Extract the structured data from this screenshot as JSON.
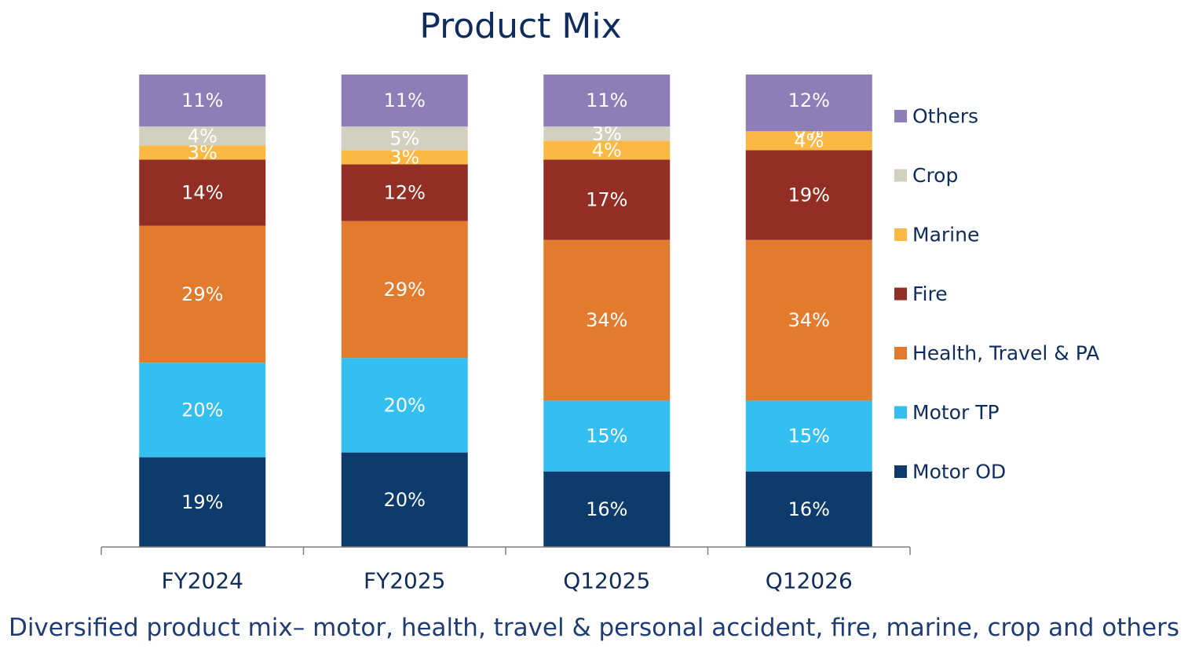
{
  "chart_data": {
    "type": "bar",
    "stacked": true,
    "title": "Product Mix",
    "caption": "Diversified product mix– motor, health, travel & personal accident, fire, marine, crop and others",
    "categories": [
      "FY2024",
      "FY2025",
      "Q12025",
      "Q12026"
    ],
    "legend_position": "right",
    "grid": false,
    "series": [
      {
        "name": "Motor OD",
        "color": "#0d3b6b",
        "label_color": "#ffffff",
        "values": [
          19,
          20,
          16,
          16
        ],
        "labels": [
          "19%",
          "20%",
          "16%",
          "16%"
        ]
      },
      {
        "name": "Motor TP",
        "color": "#33bff0",
        "label_color": "#ffffff",
        "values": [
          20,
          20,
          15,
          15
        ],
        "labels": [
          "20%",
          "20%",
          "15%",
          "15%"
        ]
      },
      {
        "name": "Health, Travel & PA",
        "color": "#e37b2e",
        "label_color": "#ffffff",
        "values": [
          29,
          29,
          34,
          34
        ],
        "labels": [
          "29%",
          "29%",
          "34%",
          "34%"
        ]
      },
      {
        "name": "Fire",
        "color": "#922e24",
        "label_color": "#ffffff",
        "values": [
          14,
          12,
          17,
          19
        ],
        "labels": [
          "14%",
          "12%",
          "17%",
          "19%"
        ]
      },
      {
        "name": "Marine",
        "color": "#fbb943",
        "label_color": "#ffffff",
        "values": [
          3,
          3,
          4,
          4
        ],
        "labels": [
          "3%",
          "3%",
          "4%",
          "4%"
        ]
      },
      {
        "name": "Crop",
        "color": "#d2d0bf",
        "label_color": "#ffffff",
        "values": [
          4,
          5,
          3,
          0
        ],
        "labels": [
          "4%",
          "5%",
          "3%",
          "0%"
        ]
      },
      {
        "name": "Others",
        "color": "#8f7db7",
        "label_color": "#ffffff",
        "values": [
          11,
          11,
          11,
          12
        ],
        "labels": [
          "11%",
          "11%",
          "11%",
          "12%"
        ]
      }
    ]
  }
}
